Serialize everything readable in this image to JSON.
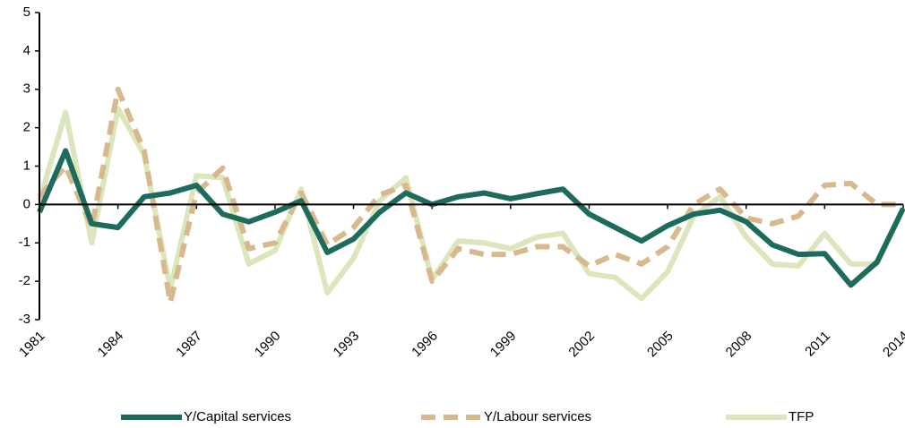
{
  "chart_data": {
    "type": "line",
    "x": [
      1981,
      1982,
      1983,
      1984,
      1985,
      1986,
      1987,
      1988,
      1989,
      1990,
      1991,
      1992,
      1993,
      1994,
      1995,
      1996,
      1997,
      1998,
      1999,
      2000,
      2001,
      2002,
      2003,
      2004,
      2005,
      2006,
      2007,
      2008,
      2009,
      2010,
      2011,
      2012,
      2013,
      2014
    ],
    "xlim": [
      1981,
      2014
    ],
    "xticks": [
      1981,
      1984,
      1987,
      1990,
      1993,
      1996,
      1999,
      2002,
      2005,
      2008,
      2011,
      2014
    ],
    "ylim": [
      -3,
      5
    ],
    "yticks": [
      -3,
      -2,
      -1,
      0,
      1,
      2,
      3,
      4,
      5
    ],
    "grid": false,
    "legend": "bottom",
    "series": [
      {
        "name": "Y/Capital services",
        "color": "#1d6b5c",
        "dash": false,
        "values": [
          -0.2,
          1.4,
          -0.5,
          -0.6,
          0.2,
          0.3,
          0.5,
          -0.25,
          -0.45,
          -0.2,
          0.1,
          -1.25,
          -0.9,
          -0.2,
          0.3,
          0.0,
          0.2,
          0.3,
          0.15,
          0.28,
          0.4,
          -0.25,
          -0.6,
          -0.95,
          -0.55,
          -0.25,
          -0.15,
          -0.45,
          -1.05,
          -1.3,
          -1.28,
          -2.1,
          -1.5,
          -0.1
        ]
      },
      {
        "name": "Y/Labour services",
        "color": "#d8b98d",
        "dash": true,
        "values": [
          0.2,
          1.0,
          -0.6,
          3.0,
          1.4,
          -2.55,
          0.3,
          0.95,
          -1.15,
          -1.0,
          0.3,
          -1.05,
          -0.6,
          0.25,
          0.5,
          -2.0,
          -1.15,
          -1.3,
          -1.3,
          -1.1,
          -1.1,
          -1.6,
          -1.3,
          -1.55,
          -1.1,
          0.0,
          0.4,
          -0.35,
          -0.5,
          -0.3,
          0.5,
          0.55,
          0.0,
          0.0
        ]
      },
      {
        "name": "TFP",
        "color": "#dce6bd",
        "dash": false,
        "values": [
          0.1,
          2.4,
          -1.0,
          2.5,
          1.3,
          -2.2,
          0.75,
          0.7,
          -1.55,
          -1.2,
          0.4,
          -2.3,
          -1.4,
          0.1,
          0.7,
          -1.95,
          -0.95,
          -1.0,
          -1.15,
          -0.85,
          -0.75,
          -1.8,
          -1.9,
          -2.45,
          -1.75,
          -0.3,
          0.2,
          -0.85,
          -1.55,
          -1.6,
          -0.75,
          -1.55,
          -1.55,
          -0.1
        ]
      }
    ]
  }
}
